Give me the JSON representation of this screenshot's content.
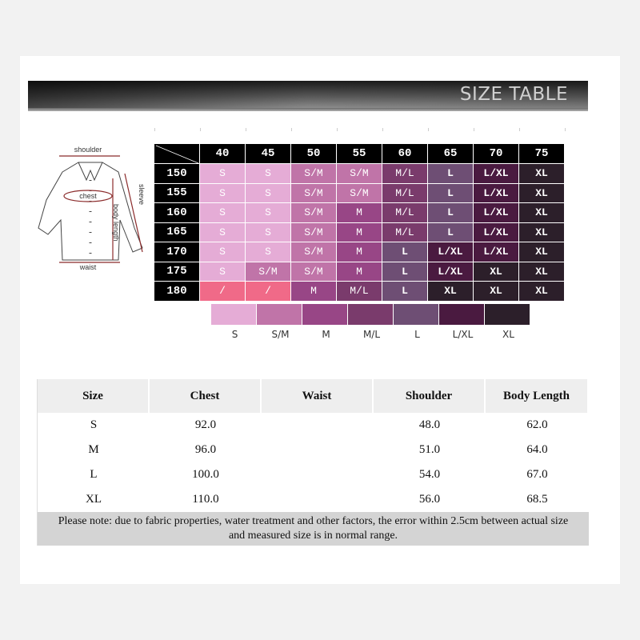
{
  "header": {
    "title": "SIZE TABLE"
  },
  "diagram": {
    "labels": {
      "shoulder": "shoulder",
      "chest": "chest",
      "sleeve": "sleeve",
      "body_length": "body length",
      "waist": "waist"
    }
  },
  "grid": {
    "columns": [
      "40",
      "45",
      "50",
      "55",
      "60",
      "65",
      "70",
      "75"
    ],
    "rows": [
      {
        "label": "150",
        "cells": [
          "S",
          "S",
          "S/M",
          "S/M",
          "M/L",
          "L",
          "L/XL",
          "XL"
        ]
      },
      {
        "label": "155",
        "cells": [
          "S",
          "S",
          "S/M",
          "S/M",
          "M/L",
          "L",
          "L/XL",
          "XL"
        ]
      },
      {
        "label": "160",
        "cells": [
          "S",
          "S",
          "S/M",
          "M",
          "M/L",
          "L",
          "L/XL",
          "XL"
        ]
      },
      {
        "label": "165",
        "cells": [
          "S",
          "S",
          "S/M",
          "M",
          "M/L",
          "L",
          "L/XL",
          "XL"
        ]
      },
      {
        "label": "170",
        "cells": [
          "S",
          "S",
          "S/M",
          "M",
          "L",
          "L/XL",
          "L/XL",
          "XL"
        ]
      },
      {
        "label": "175",
        "cells": [
          "S",
          "S/M",
          "S/M",
          "M",
          "L",
          "L/XL",
          "XL",
          "XL"
        ]
      },
      {
        "label": "180",
        "cells": [
          "/",
          "/",
          "M",
          "M/L",
          "L",
          "XL",
          "XL",
          "XL"
        ]
      }
    ]
  },
  "legend": [
    "S",
    "S/M",
    "M",
    "M/L",
    "L",
    "L/XL",
    "XL"
  ],
  "colors": {
    "S": "#e5acd6",
    "S/M": "#c074a8",
    "M": "#984686",
    "M/L": "#7a3b6c",
    "L": "#6e4e74",
    "L/XL": "#4a1a40",
    "XL": "#2c1f2a",
    "/": "#f06a88"
  },
  "measure_table": {
    "headers": [
      "Size",
      "Chest",
      "Waist",
      "Shoulder",
      "Body Length"
    ],
    "rows": [
      [
        "S",
        "92.0",
        "",
        "48.0",
        "62.0"
      ],
      [
        "M",
        "96.0",
        "",
        "51.0",
        "64.0"
      ],
      [
        "L",
        "100.0",
        "",
        "54.0",
        "67.0"
      ],
      [
        "XL",
        "110.0",
        "",
        "56.0",
        "68.5"
      ]
    ],
    "note_line1": "Please note: due to fabric properties, water treatment and other factors, the error within 2.5cm between actual size",
    "note_line2": "and measured size is in normal range."
  }
}
